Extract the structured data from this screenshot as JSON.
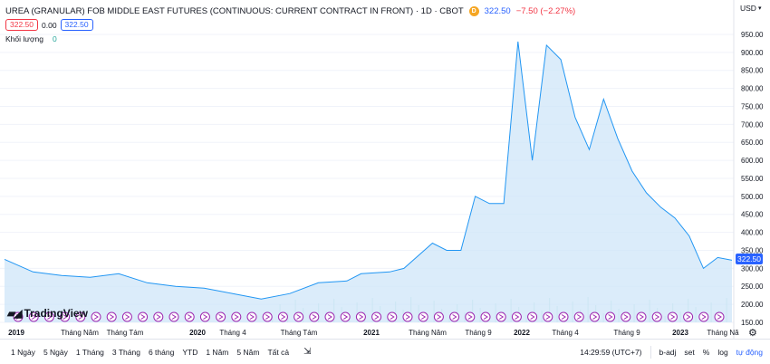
{
  "header": {
    "title": "UREA (GRANULAR) FOB MIDDLE EAST FUTURES (CONTINUOUS: CURRENT CONTRACT IN FRONT) · 1D · CBOT",
    "badge": "D",
    "price": "322.50",
    "change": "−7.50 (−2.27%)"
  },
  "quote": {
    "sell": "322.50",
    "spread": "0.00",
    "buy": "322.50"
  },
  "volume": {
    "label": "Khối lượng",
    "value": "0"
  },
  "currency": {
    "label": "USD",
    "arrow": "▾"
  },
  "price_axis": {
    "ticks": [
      "950.00",
      "900.00",
      "850.00",
      "800.00",
      "750.00",
      "700.00",
      "650.00",
      "600.00",
      "550.00",
      "500.00",
      "450.00",
      "400.00",
      "350.00",
      "300.00",
      "250.00",
      "200.00",
      "150.00"
    ],
    "current": "322.50"
  },
  "time_axis": {
    "labels": [
      {
        "text": "2019",
        "bold": true
      },
      {
        "text": "Tháng Năm",
        "bold": false
      },
      {
        "text": "Tháng Tám",
        "bold": false
      },
      {
        "text": "2020",
        "bold": true
      },
      {
        "text": "Tháng 4",
        "bold": false
      },
      {
        "text": "Tháng Tám",
        "bold": false
      },
      {
        "text": "2021",
        "bold": true
      },
      {
        "text": "Tháng Năm",
        "bold": false
      },
      {
        "text": "Tháng 9",
        "bold": false
      },
      {
        "text": "2022",
        "bold": true
      },
      {
        "text": "Tháng 4",
        "bold": false
      },
      {
        "text": "Tháng 9",
        "bold": false
      },
      {
        "text": "2023",
        "bold": true
      },
      {
        "text": "Tháng Nă",
        "bold": false
      }
    ]
  },
  "logo": {
    "text": "TradingView",
    "icon": "tradingview-logo"
  },
  "ranges": [
    "1 Ngày",
    "5 Ngày",
    "1 Tháng",
    "3 Tháng",
    "6 tháng",
    "YTD",
    "1 Năm",
    "5 Năm",
    "Tất cả"
  ],
  "bottom_right": {
    "clock": "14:29:59 (UTC+7)",
    "adj": "b-adj",
    "set": "set",
    "percent": "%",
    "log": "log",
    "auto": "tự động"
  },
  "colors": {
    "line": "#2196f3",
    "fill": "#cfe6f8",
    "accent": "#2962ff",
    "negative": "#f23645"
  },
  "chart_data": {
    "type": "area",
    "ylim": [
      150,
      975
    ],
    "x": [
      "2019-01",
      "2019-03",
      "2019-05",
      "2019-07",
      "2019-09",
      "2019-11",
      "2020-01",
      "2020-03",
      "2020-05",
      "2020-07",
      "2020-09",
      "2020-11",
      "2021-01",
      "2021-02",
      "2021-04",
      "2021-05",
      "2021-07",
      "2021-08",
      "2021-09",
      "2021-10",
      "2021-11",
      "2021-12",
      "2022-01",
      "2022-02",
      "2022-03",
      "2022-04",
      "2022-05",
      "2022-06",
      "2022-07",
      "2022-08",
      "2022-09",
      "2022-10",
      "2022-11",
      "2022-12",
      "2023-01",
      "2023-02",
      "2023-03",
      "2023-04"
    ],
    "values": [
      325,
      290,
      280,
      275,
      285,
      260,
      250,
      245,
      230,
      215,
      230,
      260,
      265,
      285,
      290,
      300,
      370,
      350,
      350,
      500,
      480,
      480,
      930,
      600,
      920,
      880,
      720,
      630,
      770,
      660,
      570,
      510,
      470,
      440,
      390,
      300,
      330,
      322.5
    ]
  }
}
